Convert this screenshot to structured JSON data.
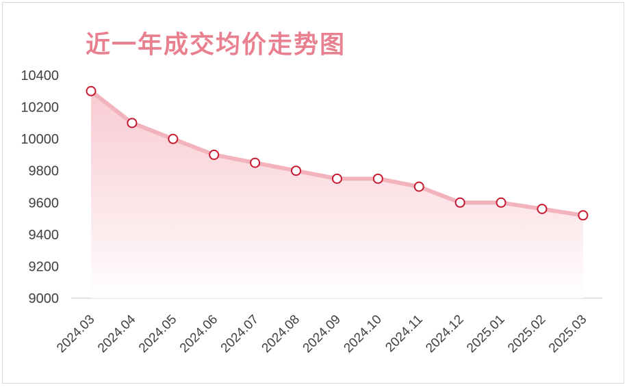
{
  "chart_data": {
    "type": "area",
    "title": "近一年成交均价走势图",
    "categories": [
      "2024.03",
      "2024.04",
      "2024.05",
      "2024.06",
      "2024.07",
      "2024.08",
      "2024.09",
      "2024.10",
      "2024.11",
      "2024.12",
      "2025.01",
      "2025.02",
      "2025.03"
    ],
    "values": [
      10300,
      10100,
      10000,
      9900,
      9850,
      9800,
      9750,
      9750,
      9700,
      9600,
      9600,
      9560,
      9520
    ],
    "ylim": [
      9000,
      10400
    ],
    "yticks": [
      "9000",
      "9200",
      "9400",
      "9600",
      "9800",
      "10000",
      "10200",
      "10400"
    ],
    "grid": false,
    "legend": "none",
    "colors": {
      "title": "#e8808f",
      "line": "#f2b3bc",
      "marker_stroke": "#c8182f",
      "marker_fill": "#ffffff",
      "area_top": "#f7c3cb",
      "area_bottom": "#ffffff",
      "axis": "#d9d9d9"
    }
  }
}
